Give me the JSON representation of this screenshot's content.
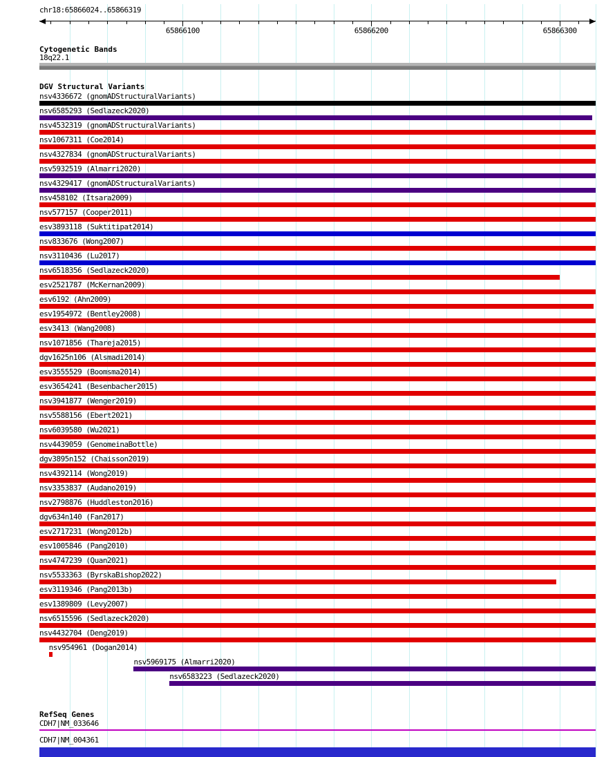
{
  "region": {
    "label": "chr18:65866024..65866319",
    "start": 65866024,
    "end": 65866319
  },
  "axis": {
    "minor_tick_step": 10,
    "major_ticks": [
      {
        "position": 65866100,
        "label": "65866100"
      },
      {
        "position": 65866200,
        "label": "65866200"
      },
      {
        "position": 65866300,
        "label": "65866300"
      }
    ],
    "grid_positions": [
      65866040,
      65866060,
      65866080,
      65866100,
      65866120,
      65866140,
      65866160,
      65866180,
      65866200,
      65866220,
      65866240,
      65866260,
      65866280,
      65866300,
      65866319
    ]
  },
  "colors": {
    "grid": "#c8f0f0",
    "red": "#e10000",
    "purple": "#4b0082",
    "blue": "#0000d0",
    "black": "#000000",
    "gene_line": "#c000c0",
    "gene_box": "#2929cc"
  },
  "tracks": {
    "cytoband": {
      "title": "Cytogenetic Bands",
      "band_label": "18q22.1"
    },
    "dgv": {
      "title": "DGV Structural Variants",
      "variants": [
        {
          "label": "nsv4336672 (gnomADStructuralVariants)",
          "color": "black",
          "start": 65866024,
          "end": 65866319
        },
        {
          "label": "nsv6585293 (Sedlazeck2020)",
          "color": "purple",
          "start": 65866024,
          "end": 65866317
        },
        {
          "label": "nsv4532319 (gnomADStructuralVariants)",
          "color": "red",
          "start": 65866024,
          "end": 65866319
        },
        {
          "label": "nsv1067311 (Coe2014)",
          "color": "red",
          "start": 65866024,
          "end": 65866319
        },
        {
          "label": "nsv4327834 (gnomADStructuralVariants)",
          "color": "red",
          "start": 65866024,
          "end": 65866319
        },
        {
          "label": "nsv5932519 (Almarri2020)",
          "color": "purple",
          "start": 65866024,
          "end": 65866319
        },
        {
          "label": "nsv4329417 (gnomADStructuralVariants)",
          "color": "purple",
          "start": 65866024,
          "end": 65866319
        },
        {
          "label": "nsv458102 (Itsara2009)",
          "color": "red",
          "start": 65866024,
          "end": 65866319
        },
        {
          "label": "nsv577157 (Cooper2011)",
          "color": "red",
          "start": 65866024,
          "end": 65866319
        },
        {
          "label": "esv3893118 (Suktitipat2014)",
          "color": "blue",
          "start": 65866024,
          "end": 65866319
        },
        {
          "label": "nsv833676 (Wong2007)",
          "color": "red",
          "start": 65866024,
          "end": 65866319
        },
        {
          "label": "nsv3110436 (Lu2017)",
          "color": "blue",
          "start": 65866024,
          "end": 65866319
        },
        {
          "label": "nsv6518356 (Sedlazeck2020)",
          "color": "red",
          "start": 65866024,
          "end": 65866300
        },
        {
          "label": "esv2521787 (McKernan2009)",
          "color": "red",
          "start": 65866024,
          "end": 65866319
        },
        {
          "label": "esv6192 (Ahn2009)",
          "color": "red",
          "start": 65866024,
          "end": 65866318
        },
        {
          "label": "esv1954972 (Bentley2008)",
          "color": "red",
          "start": 65866024,
          "end": 65866319
        },
        {
          "label": "esv3413 (Wang2008)",
          "color": "red",
          "start": 65866024,
          "end": 65866319
        },
        {
          "label": "nsv1071856 (Thareja2015)",
          "color": "red",
          "start": 65866024,
          "end": 65866319
        },
        {
          "label": "dgv1625n106 (Alsmadi2014)",
          "color": "red",
          "start": 65866024,
          "end": 65866319
        },
        {
          "label": "esv3555529 (Boomsma2014)",
          "color": "red",
          "start": 65866024,
          "end": 65866319
        },
        {
          "label": "esv3654241 (Besenbacher2015)",
          "color": "red",
          "start": 65866024,
          "end": 65866319
        },
        {
          "label": "nsv3941877 (Wenger2019)",
          "color": "red",
          "start": 65866024,
          "end": 65866319
        },
        {
          "label": "nsv5588156 (Ebert2021)",
          "color": "red",
          "start": 65866024,
          "end": 65866319
        },
        {
          "label": "nsv6039580 (Wu2021)",
          "color": "red",
          "start": 65866024,
          "end": 65866319
        },
        {
          "label": "nsv4439059 (GenomeinaBottle)",
          "color": "red",
          "start": 65866024,
          "end": 65866319
        },
        {
          "label": "dgv3895n152 (Chaisson2019)",
          "color": "red",
          "start": 65866024,
          "end": 65866319
        },
        {
          "label": "nsv4392114 (Wong2019)",
          "color": "red",
          "start": 65866024,
          "end": 65866319
        },
        {
          "label": "nsv3353837 (Audano2019)",
          "color": "red",
          "start": 65866024,
          "end": 65866319
        },
        {
          "label": "nsv2798876 (Huddleston2016)",
          "color": "red",
          "start": 65866024,
          "end": 65866319
        },
        {
          "label": "dgv634n140 (Fan2017)",
          "color": "red",
          "start": 65866024,
          "end": 65866319
        },
        {
          "label": "esv2717231 (Wong2012b)",
          "color": "red",
          "start": 65866024,
          "end": 65866319
        },
        {
          "label": "esv1005846 (Pang2010)",
          "color": "red",
          "start": 65866024,
          "end": 65866319
        },
        {
          "label": "nsv4747239 (Quan2021)",
          "color": "red",
          "start": 65866024,
          "end": 65866319
        },
        {
          "label": "nsv5533363 (ByrskaBishop2022)",
          "color": "red",
          "start": 65866024,
          "end": 65866298
        },
        {
          "label": "esv3119346 (Pang2013b)",
          "color": "red",
          "start": 65866024,
          "end": 65866319
        },
        {
          "label": "esv1389809 (Levy2007)",
          "color": "red",
          "start": 65866024,
          "end": 65866319
        },
        {
          "label": "nsv6515596 (Sedlazeck2020)",
          "color": "red",
          "start": 65866024,
          "end": 65866319
        },
        {
          "label": "nsv4432704 (Deng2019)",
          "color": "red",
          "start": 65866024,
          "end": 65866319
        },
        {
          "label": "nsv954961 (Dogan2014)",
          "color": "red",
          "start": 65866029,
          "end": 65866031
        },
        {
          "label": "nsv5969175 (Almarri2020)",
          "color": "purple",
          "start": 65866074,
          "end": 65866319
        },
        {
          "label": "nsv6583223 (Sedlazeck2020)",
          "color": "purple",
          "start": 65866093,
          "end": 65866319
        }
      ]
    },
    "refseq": {
      "title": "RefSeq Genes",
      "genes": [
        {
          "label": "CDH7|NM_033646",
          "glyph": "line",
          "start": 65866024,
          "end": 65866319
        },
        {
          "label": "CDH7|NM_004361",
          "glyph": "box",
          "start": 65866024,
          "end": 65866319
        }
      ]
    }
  }
}
